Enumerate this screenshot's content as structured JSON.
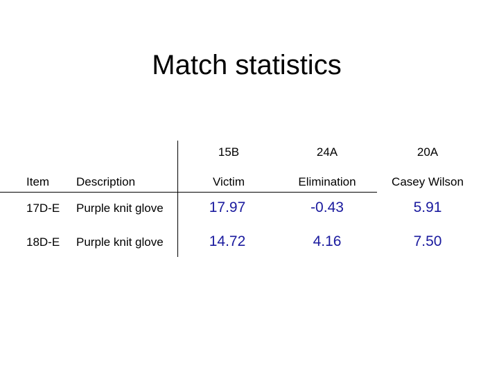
{
  "title": "Match statistics",
  "table": {
    "columns": [
      {
        "code": "15B",
        "name": "Victim"
      },
      {
        "code": "24A",
        "name": "Elimination"
      },
      {
        "code": "20A",
        "name": "Casey Wilson"
      }
    ],
    "item_header": "Item",
    "description_header": "Description",
    "rows": [
      {
        "item": "17D-E",
        "description": "Purple knit glove",
        "values": [
          "17.97",
          "-0.43",
          "5.91"
        ]
      },
      {
        "item": "18D-E",
        "description": "Purple knit glove",
        "values": [
          "14.72",
          "4.16",
          "7.50"
        ]
      }
    ]
  },
  "colors": {
    "values": "#1a1a9e",
    "text": "#000000",
    "background": "#ffffff"
  }
}
